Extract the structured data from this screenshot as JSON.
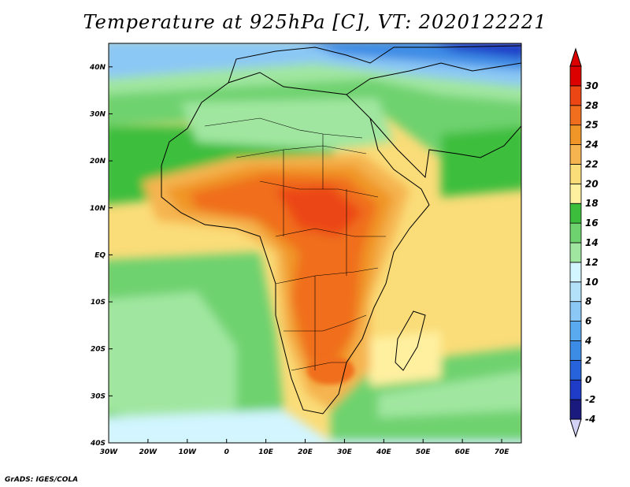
{
  "title": "Temperature at 925hPa [C], VT: 2020122221",
  "credit": "GrADS: IGES/COLA",
  "map": {
    "lon_range": [
      -30,
      75
    ],
    "lat_range": [
      -40,
      45
    ],
    "lon_ticks": [
      {
        "value": -30,
        "label": "30W"
      },
      {
        "value": -20,
        "label": "20W"
      },
      {
        "value": -10,
        "label": "10W"
      },
      {
        "value": 0,
        "label": "0"
      },
      {
        "value": 10,
        "label": "10E"
      },
      {
        "value": 20,
        "label": "20E"
      },
      {
        "value": 30,
        "label": "30E"
      },
      {
        "value": 40,
        "label": "40E"
      },
      {
        "value": 50,
        "label": "50E"
      },
      {
        "value": 60,
        "label": "60E"
      },
      {
        "value": 70,
        "label": "70E"
      }
    ],
    "lat_ticks": [
      {
        "value": 40,
        "label": "40N"
      },
      {
        "value": 30,
        "label": "30N"
      },
      {
        "value": 20,
        "label": "20N"
      },
      {
        "value": 10,
        "label": "10N"
      },
      {
        "value": 0,
        "label": "EQ"
      },
      {
        "value": -10,
        "label": "10S"
      },
      {
        "value": -20,
        "label": "20S"
      },
      {
        "value": -30,
        "label": "30S"
      },
      {
        "value": -40,
        "label": "40S"
      }
    ]
  },
  "colorbar": {
    "colors": [
      "#1a1a7e",
      "#1e3cc8",
      "#2764dc",
      "#3c8ce6",
      "#5aaaf0",
      "#8cc8f5",
      "#b4e1fa",
      "#d2f5ff",
      "#a0e6a0",
      "#6ed26e",
      "#3cbe3c",
      "#fff0a0",
      "#fadc78",
      "#f5b450",
      "#f09628",
      "#f06e1e",
      "#eb4614",
      "#dc0000"
    ],
    "under_color": "#d2d2f5",
    "labels": [
      "-4",
      "-2",
      "0",
      "2",
      "4",
      "6",
      "8",
      "10",
      "12",
      "14",
      "16",
      "18",
      "20",
      "22",
      "24",
      "25",
      "28",
      "30"
    ]
  }
}
